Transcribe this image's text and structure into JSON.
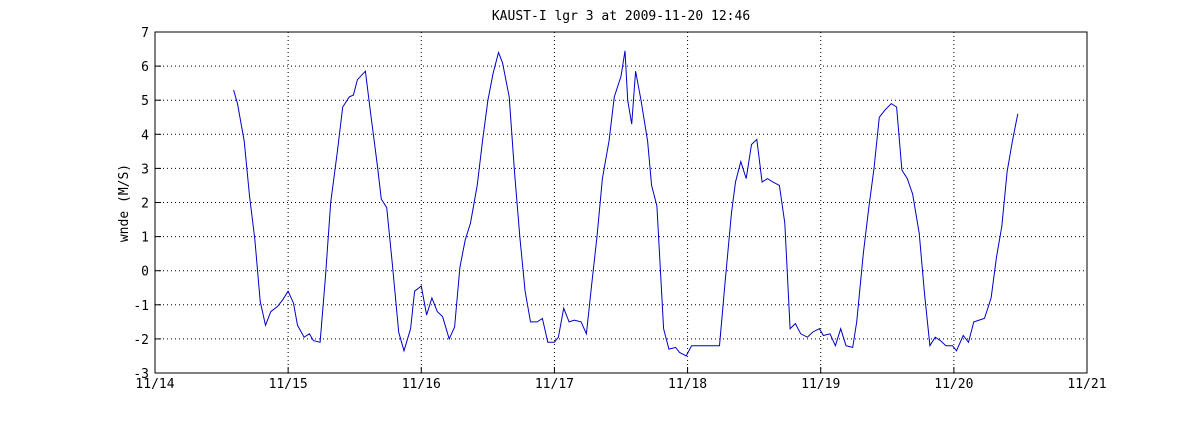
{
  "chart_data": {
    "type": "line",
    "title": "KAUST-I lgr 3 at 2009-11-20 12:46",
    "ylabel": "wnde (M/S)",
    "color": "#0000c8",
    "grid": true,
    "xlim": [
      14,
      21
    ],
    "xticks": [
      {
        "value": 14,
        "label": "11/14"
      },
      {
        "value": 15,
        "label": "11/15"
      },
      {
        "value": 16,
        "label": "11/16"
      },
      {
        "value": 17,
        "label": "11/17"
      },
      {
        "value": 18,
        "label": "11/18"
      },
      {
        "value": 19,
        "label": "11/19"
      },
      {
        "value": 20,
        "label": "11/20"
      },
      {
        "value": 21,
        "label": "11/21"
      }
    ],
    "ylim": [
      -3,
      7
    ],
    "yticks": [
      -3,
      -2,
      -1,
      0,
      1,
      2,
      3,
      4,
      5,
      6,
      7
    ],
    "x": [
      14.59,
      14.62,
      14.67,
      14.71,
      14.75,
      14.79,
      14.83,
      14.87,
      14.92,
      14.96,
      15.0,
      15.04,
      15.07,
      15.12,
      15.16,
      15.19,
      15.24,
      15.28,
      15.32,
      15.37,
      15.41,
      15.46,
      15.49,
      15.52,
      15.58,
      15.62,
      15.67,
      15.7,
      15.74,
      15.78,
      15.83,
      15.87,
      15.92,
      15.95,
      16.0,
      16.04,
      16.08,
      16.12,
      16.16,
      16.21,
      16.25,
      16.29,
      16.33,
      16.37,
      16.42,
      16.46,
      16.5,
      16.54,
      16.58,
      16.61,
      16.66,
      16.7,
      16.74,
      16.78,
      16.82,
      16.87,
      16.91,
      16.95,
      17.0,
      17.03,
      17.07,
      17.11,
      17.15,
      17.2,
      17.24,
      17.28,
      17.32,
      17.36,
      17.41,
      17.45,
      17.5,
      17.53,
      17.55,
      17.58,
      17.61,
      17.65,
      17.7,
      17.73,
      17.77,
      17.82,
      17.86,
      17.91,
      17.94,
      17.99,
      18.03,
      18.08,
      18.12,
      18.15,
      18.2,
      18.24,
      18.28,
      18.33,
      18.36,
      18.4,
      18.44,
      18.48,
      18.52,
      18.56,
      18.6,
      18.64,
      18.69,
      18.73,
      18.77,
      18.81,
      18.85,
      18.9,
      18.94,
      18.99,
      19.02,
      19.07,
      19.11,
      19.15,
      19.19,
      19.24,
      19.27,
      19.32,
      19.36,
      19.4,
      19.44,
      19.48,
      19.53,
      19.57,
      19.61,
      19.65,
      19.69,
      19.74,
      19.78,
      19.82,
      19.86,
      19.9,
      19.94,
      19.99,
      20.02,
      20.07,
      20.11,
      20.15,
      20.19,
      20.23,
      20.28,
      20.32,
      20.36,
      20.4,
      20.44,
      20.48
    ],
    "values": [
      5.3,
      4.9,
      3.8,
      2.2,
      0.9,
      -0.9,
      -1.6,
      -1.2,
      -1.05,
      -0.85,
      -0.6,
      -0.95,
      -1.6,
      -1.95,
      -1.85,
      -2.05,
      -2.1,
      -0.2,
      2.0,
      3.5,
      4.8,
      5.1,
      5.15,
      5.6,
      5.85,
      4.6,
      3.1,
      2.1,
      1.85,
      0.3,
      -1.8,
      -2.35,
      -1.7,
      -0.6,
      -0.45,
      -1.3,
      -0.8,
      -1.2,
      -1.35,
      -2.0,
      -1.65,
      0.1,
      0.9,
      1.4,
      2.5,
      3.8,
      5.0,
      5.8,
      6.4,
      6.1,
      5.1,
      2.9,
      1.0,
      -0.6,
      -1.5,
      -1.5,
      -1.4,
      -2.1,
      -2.1,
      -1.95,
      -1.1,
      -1.5,
      -1.45,
      -1.5,
      -1.85,
      -0.4,
      1.0,
      2.7,
      3.8,
      5.1,
      5.7,
      6.45,
      5.0,
      4.3,
      5.85,
      5.0,
      3.8,
      2.5,
      1.9,
      -1.7,
      -2.3,
      -2.25,
      -2.4,
      -2.5,
      -2.2,
      -2.2,
      -2.2,
      -2.2,
      -2.2,
      -2.2,
      -0.4,
      1.7,
      2.6,
      3.2,
      2.7,
      3.7,
      3.85,
      2.6,
      2.7,
      2.6,
      2.5,
      1.4,
      -1.7,
      -1.55,
      -1.85,
      -1.95,
      -1.8,
      -1.7,
      -1.9,
      -1.85,
      -2.2,
      -1.7,
      -2.2,
      -2.25,
      -1.5,
      0.5,
      1.8,
      3.0,
      4.5,
      4.7,
      4.9,
      4.8,
      2.95,
      2.7,
      2.25,
      1.1,
      -0.7,
      -2.2,
      -1.95,
      -2.05,
      -2.2,
      -2.2,
      -2.35,
      -1.9,
      -2.1,
      -1.5,
      -1.45,
      -1.4,
      -0.8,
      0.4,
      1.3,
      2.9,
      3.8,
      4.6
    ]
  }
}
